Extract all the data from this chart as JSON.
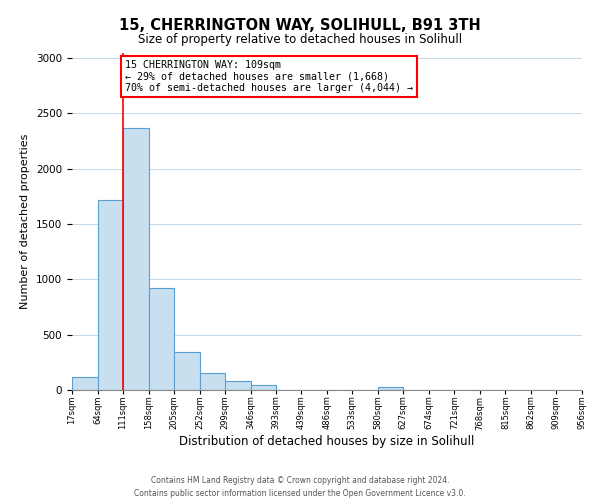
{
  "title": "15, CHERRINGTON WAY, SOLIHULL, B91 3TH",
  "subtitle": "Size of property relative to detached houses in Solihull",
  "xlabel": "Distribution of detached houses by size in Solihull",
  "ylabel": "Number of detached properties",
  "bar_color": "#c8dff0",
  "bar_edge_color": "#5a9fd4",
  "bin_edges": [
    17,
    64,
    111,
    158,
    205,
    252,
    299,
    346,
    393,
    439,
    486,
    533,
    580,
    627,
    674,
    721,
    768,
    815,
    862,
    909,
    956
  ],
  "bin_labels": [
    "17sqm",
    "64sqm",
    "111sqm",
    "158sqm",
    "205sqm",
    "252sqm",
    "299sqm",
    "346sqm",
    "393sqm",
    "439sqm",
    "486sqm",
    "533sqm",
    "580sqm",
    "627sqm",
    "674sqm",
    "721sqm",
    "768sqm",
    "815sqm",
    "862sqm",
    "909sqm",
    "956sqm"
  ],
  "counts": [
    120,
    1720,
    2370,
    920,
    340,
    150,
    85,
    45,
    0,
    0,
    0,
    0,
    30,
    0,
    0,
    0,
    0,
    0,
    0,
    0
  ],
  "property_line_x": 111,
  "annotation_text": "15 CHERRINGTON WAY: 109sqm\n← 29% of detached houses are smaller (1,668)\n70% of semi-detached houses are larger (4,044) →",
  "annotation_box_color": "white",
  "annotation_box_edge_color": "red",
  "property_line_color": "red",
  "ylim": [
    0,
    3050
  ],
  "yticks": [
    0,
    500,
    1000,
    1500,
    2000,
    2500,
    3000
  ],
  "footer_line1": "Contains HM Land Registry data © Crown copyright and database right 2024.",
  "footer_line2": "Contains public sector information licensed under the Open Government Licence v3.0."
}
